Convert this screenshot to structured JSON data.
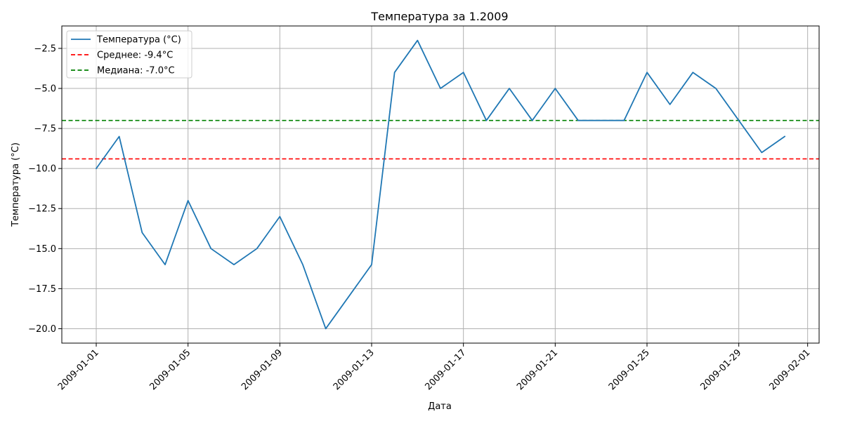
{
  "chart_data": {
    "type": "line",
    "title": "Температура за 1.2009",
    "xlabel": "Дата",
    "ylabel": "Температура (°C)",
    "x": [
      "2009-01-01",
      "2009-01-02",
      "2009-01-03",
      "2009-01-04",
      "2009-01-05",
      "2009-01-06",
      "2009-01-07",
      "2009-01-08",
      "2009-01-09",
      "2009-01-10",
      "2009-01-11",
      "2009-01-12",
      "2009-01-13",
      "2009-01-14",
      "2009-01-15",
      "2009-01-16",
      "2009-01-17",
      "2009-01-18",
      "2009-01-19",
      "2009-01-20",
      "2009-01-21",
      "2009-01-22",
      "2009-01-23",
      "2009-01-24",
      "2009-01-25",
      "2009-01-26",
      "2009-01-27",
      "2009-01-28",
      "2009-01-29",
      "2009-01-30",
      "2009-01-31"
    ],
    "series": [
      {
        "name": "Температура (°C)",
        "color": "#1f77b4",
        "values": [
          -10,
          -8,
          -14,
          -16,
          -12,
          -15,
          -16,
          -15,
          -13,
          -16,
          -20,
          -18,
          -16,
          -4,
          -2,
          -5,
          -4,
          -7,
          -5,
          -7,
          -5,
          -7,
          -7,
          -7,
          -4,
          -6,
          -4,
          -5,
          -7,
          -9,
          -8
        ]
      }
    ],
    "reference_lines": [
      {
        "name": "Среднее: -9.4°C",
        "value": -9.4,
        "color": "#ff0000",
        "style": "dashed"
      },
      {
        "name": "Медиана: -7.0°C",
        "value": -7.0,
        "color": "#008000",
        "style": "dashed"
      }
    ],
    "xlim": [
      "2008-12-30T12:00",
      "2009-02-01T12:00"
    ],
    "ylim": [
      -20.9,
      -1.1
    ],
    "xticks": [
      "2009-01-01",
      "2009-01-05",
      "2009-01-09",
      "2009-01-13",
      "2009-01-17",
      "2009-01-21",
      "2009-01-25",
      "2009-01-29",
      "2009-02-01"
    ],
    "yticks": [
      -2.5,
      -5.0,
      -7.5,
      -10.0,
      -12.5,
      -15.0,
      -17.5,
      -20.0
    ],
    "ytick_labels": [
      "−2.5",
      "−5.0",
      "−7.5",
      "−10.0",
      "−12.5",
      "−15.0",
      "−17.5",
      "−20.0"
    ],
    "grid": true,
    "legend_position": "top-left"
  }
}
